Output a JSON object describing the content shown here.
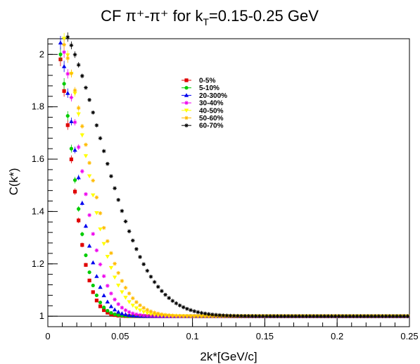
{
  "chart_data": {
    "type": "scatter",
    "title": "CF π⁺-π⁺ for k",
    "title_sub": "T",
    "title_rest": "=0.15-0.25 GeV",
    "xlabel": "2k*[GeV/c]",
    "ylabel": "C(k*)",
    "xlim": [
      0,
      0.25
    ],
    "ylim": [
      0.96,
      2.06
    ],
    "x_ticks": [
      "0",
      "0.05",
      "0.1",
      "0.15",
      "0.2",
      "0.25"
    ],
    "y_ticks": [
      "1",
      "1.2",
      "1.4",
      "1.6",
      "1.8",
      "2"
    ],
    "x_tick_values": [
      0,
      0.05,
      0.1,
      0.15,
      0.2,
      0.25
    ],
    "y_tick_values": [
      1,
      1.2,
      1.4,
      1.6,
      1.8,
      2
    ],
    "baseline": 1,
    "legend_position": "top-center",
    "series": [
      {
        "name": "0-5%",
        "color": "#e00000",
        "marker": "square",
        "amp": 1.2,
        "width": 0.0195
      },
      {
        "name": "5-10%",
        "color": "#00cc00",
        "marker": "circle",
        "amp": 1.2,
        "width": 0.0205
      },
      {
        "name": "20-300%",
        "color": "#0000ee",
        "marker": "triangle",
        "amp": 1.2,
        "width": 0.0235
      },
      {
        "name": "30-40%",
        "color": "#ee00ee",
        "marker": "star",
        "amp": 1.2,
        "width": 0.027
      },
      {
        "name": "40-50%",
        "color": "#ffff00",
        "marker": "triangle-down",
        "amp": 1.2,
        "width": 0.032
      },
      {
        "name": "50-60%",
        "color": "#ffbb00",
        "marker": "star",
        "amp": 1.15,
        "width": 0.035
      },
      {
        "name": "60-70%",
        "color": "#000000",
        "marker": "star",
        "amp": 1.15,
        "width": 0.05
      }
    ],
    "x_step": 0.0025
  }
}
